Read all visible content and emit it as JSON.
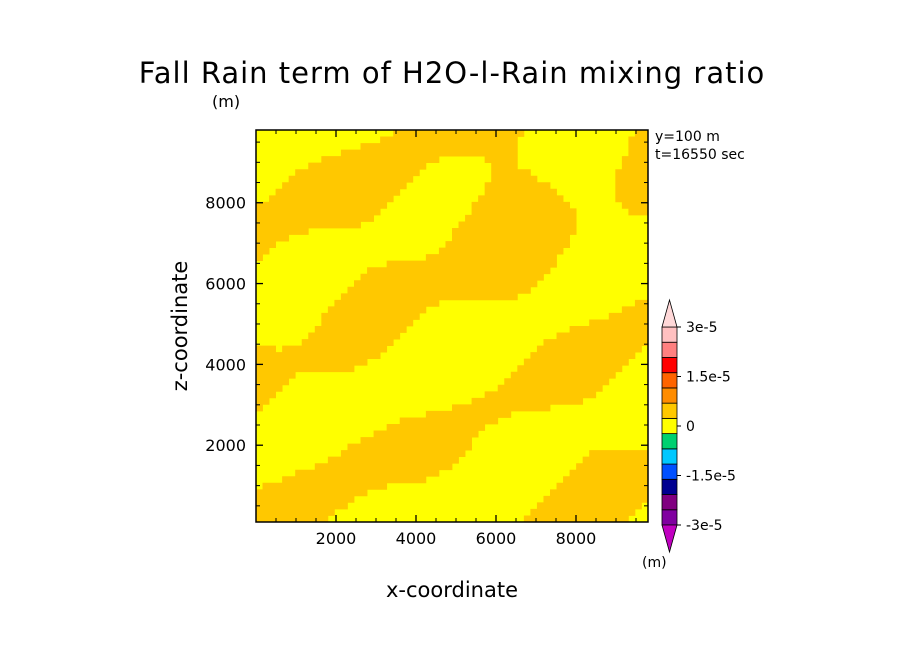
{
  "chart_data": {
    "type": "contour",
    "title": "Fall Rain term of H2O-l-Rain mixing ratio",
    "title_unit": "(m)",
    "annotations": [
      "y=100 m",
      "t=16550 sec"
    ],
    "xlabel": "x-coordinate",
    "ylabel": "z-coordinate",
    "xlim": [
      0,
      9800
    ],
    "ylim": [
      100,
      9800
    ],
    "x_ticks": [
      2000,
      4000,
      6000,
      8000
    ],
    "y_ticks": [
      2000,
      4000,
      6000,
      8000
    ],
    "x_tick_labels": [
      "2000",
      "4000",
      "6000",
      "8000"
    ],
    "y_tick_labels": [
      "2000",
      "4000",
      "6000",
      "8000"
    ],
    "field_levels": {
      "low": 0,
      "high": 7.5e-06
    },
    "field_colors": {
      "low": "#ffff00",
      "high": "#ffc800"
    },
    "colorbar": {
      "unit": "(m)",
      "levels": [
        -3e-05,
        -2.25e-05,
        -1.5e-05,
        -7.5e-06,
        0,
        7.5e-06,
        1.5e-05,
        2.25e-05,
        3e-05
      ],
      "labels": [
        {
          "value": 3e-05,
          "text": "3e-5"
        },
        {
          "value": 1.5e-05,
          "text": "1.5e-5"
        },
        {
          "value": 0,
          "text": "0"
        },
        {
          "value": -1.5e-05,
          "text": "-1.5e-5"
        },
        {
          "value": -3e-05,
          "text": "-3e-5"
        }
      ],
      "colors_bottom_to_top": [
        "#8000a0",
        "#800080",
        "#000090",
        "#0050ff",
        "#00c8ff",
        "#00d070",
        "#ffff00",
        "#ffc800",
        "#ff8c00",
        "#ff6400",
        "#ff0000",
        "#ff8080",
        "#ffc0c0"
      ],
      "extend_low_color": "#c000c0",
      "extend_high_color": "#ffd8d8"
    }
  }
}
